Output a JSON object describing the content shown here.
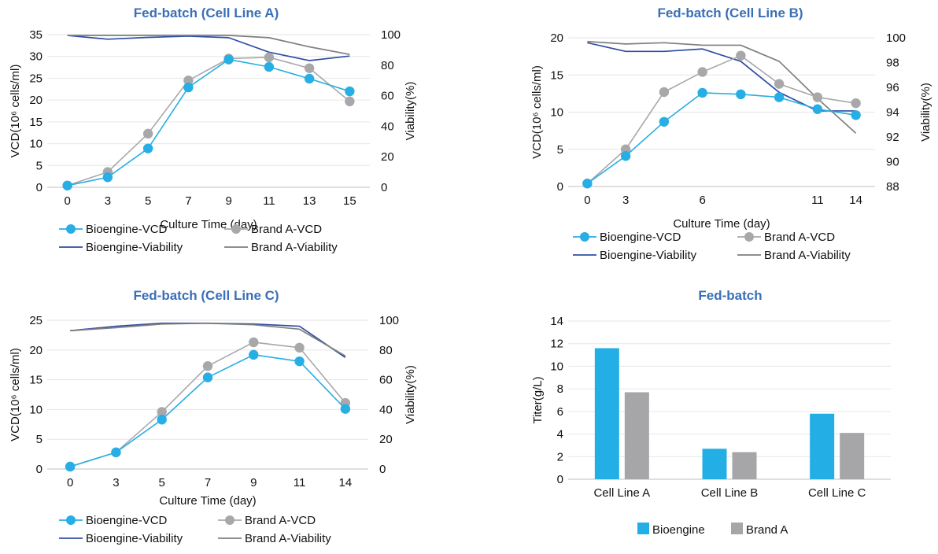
{
  "colors": {
    "bio_vcd": "#27aee4",
    "brand_vcd": "#a8a8ab",
    "bio_via": "#2f4ea4",
    "brand_via": "#7f7f7f",
    "bio_bar": "#23afe5",
    "brand_bar": "#a6a6a9",
    "title": "#3a6fb7",
    "grid": "#e6e6e6"
  },
  "legend": {
    "bio_vcd": "Bioengine-VCD",
    "brand_vcd": "Brand A-VCD",
    "bio_via": "Bioengine-Viability",
    "brand_via": "Brand A-Viability",
    "bio": "Bioengine",
    "brand": "Brand A"
  },
  "chart_data": [
    {
      "type": "line",
      "title": "Fed-batch (Cell Line A)",
      "xlabel": "Culture Time (day)",
      "ylabel": "VCD(10⁶ cells/ml)",
      "y2label": "Viability(%)",
      "x": [
        "0",
        "3",
        "5",
        "7",
        "9",
        "11",
        "13",
        "15"
      ],
      "ylim": [
        0,
        35
      ],
      "yticks": [
        0,
        5,
        10,
        15,
        20,
        25,
        30,
        35
      ],
      "y2lim": [
        0,
        100
      ],
      "y2ticks": [
        0,
        20,
        40,
        60,
        80,
        100
      ],
      "grid": true,
      "legend_position": "bottom",
      "series": [
        {
          "name": "Bioengine-VCD",
          "axis": "left",
          "values": [
            0.4,
            2.3,
            8.9,
            22.9,
            29.3,
            27.6,
            24.9,
            22.0
          ]
        },
        {
          "name": "Brand A-VCD",
          "axis": "left",
          "values": [
            0.4,
            3.5,
            12.3,
            24.5,
            29.5,
            29.8,
            27.3,
            19.7
          ]
        },
        {
          "name": "Bioengine-Viability",
          "axis": "right",
          "values": [
            99.5,
            97,
            98.2,
            99,
            98,
            88.5,
            83,
            86
          ]
        },
        {
          "name": "Brand A-Viability",
          "axis": "right",
          "values": [
            99.5,
            99.5,
            99.5,
            99.5,
            99.5,
            98,
            92,
            87
          ]
        }
      ]
    },
    {
      "type": "line",
      "title": "Fed-batch (Cell Line B)",
      "xlabel": "Culture Time (day)",
      "ylabel": "VCD(10⁶ cells/ml)",
      "y2label": "Viability(%)",
      "x": [
        "0",
        "3",
        "",
        "6",
        "",
        "",
        "11",
        "14"
      ],
      "ylim": [
        0,
        20
      ],
      "yticks": [
        0,
        5,
        10,
        15,
        20
      ],
      "y2lim": [
        88,
        100
      ],
      "y2ticks": [
        88,
        90,
        92,
        94,
        96,
        98,
        100
      ],
      "grid": true,
      "legend_position": "bottom",
      "series": [
        {
          "name": "Bioengine-VCD",
          "axis": "left",
          "values": [
            0.4,
            4.1,
            8.7,
            12.6,
            12.4,
            12.0,
            10.4,
            9.6
          ]
        },
        {
          "name": "Brand A-VCD",
          "axis": "left",
          "values": [
            0.4,
            5.0,
            12.7,
            15.4,
            17.6,
            13.8,
            12.0,
            11.2
          ]
        },
        {
          "name": "Bioengine-Viability",
          "axis": "right",
          "values": [
            99.6,
            98.9,
            98.9,
            99.1,
            98.1,
            95.6,
            94.1,
            94.1
          ]
        },
        {
          "name": "Brand A-Viability",
          "axis": "right",
          "values": [
            99.7,
            99.5,
            99.6,
            99.4,
            99.4,
            98.1,
            95.1,
            92.3
          ]
        }
      ]
    },
    {
      "type": "line",
      "title": "Fed-batch (Cell Line C)",
      "xlabel": "Culture Time (day)",
      "ylabel": "VCD(10⁶ cells/ml)",
      "y2label": "Viability(%)",
      "x": [
        "0",
        "3",
        "5",
        "7",
        "9",
        "11",
        "14"
      ],
      "ylim": [
        0,
        25
      ],
      "yticks": [
        0,
        5,
        10,
        15,
        20,
        25
      ],
      "y2lim": [
        0,
        100
      ],
      "y2ticks": [
        0,
        20,
        40,
        60,
        80,
        100
      ],
      "grid": true,
      "legend_position": "bottom",
      "series": [
        {
          "name": "Bioengine-VCD",
          "axis": "left",
          "values": [
            0.4,
            2.8,
            8.3,
            15.4,
            19.2,
            18.1,
            10.1
          ]
        },
        {
          "name": "Brand A-VCD",
          "axis": "left",
          "values": [
            0.4,
            2.8,
            9.6,
            17.3,
            21.3,
            20.4,
            11.1
          ]
        },
        {
          "name": "Bioengine-Viability",
          "axis": "right",
          "values": [
            93,
            96,
            98,
            98,
            97.5,
            96,
            75
          ]
        },
        {
          "name": "Brand A-Viability",
          "axis": "right",
          "values": [
            93,
            95,
            97.5,
            98,
            97,
            94,
            76
          ]
        }
      ]
    },
    {
      "type": "bar",
      "title": "Fed-batch",
      "xlabel": "",
      "ylabel": "Titer(g/L)",
      "categories": [
        "Cell Line A",
        "Cell Line B",
        "Cell Line C"
      ],
      "ylim": [
        0,
        14
      ],
      "yticks": [
        0,
        2,
        4,
        6,
        8,
        10,
        12,
        14
      ],
      "grid": true,
      "legend_position": "bottom",
      "series": [
        {
          "name": "Bioengine",
          "values": [
            11.6,
            2.7,
            5.8
          ]
        },
        {
          "name": "Brand A",
          "values": [
            7.7,
            2.4,
            4.1
          ]
        }
      ]
    }
  ]
}
